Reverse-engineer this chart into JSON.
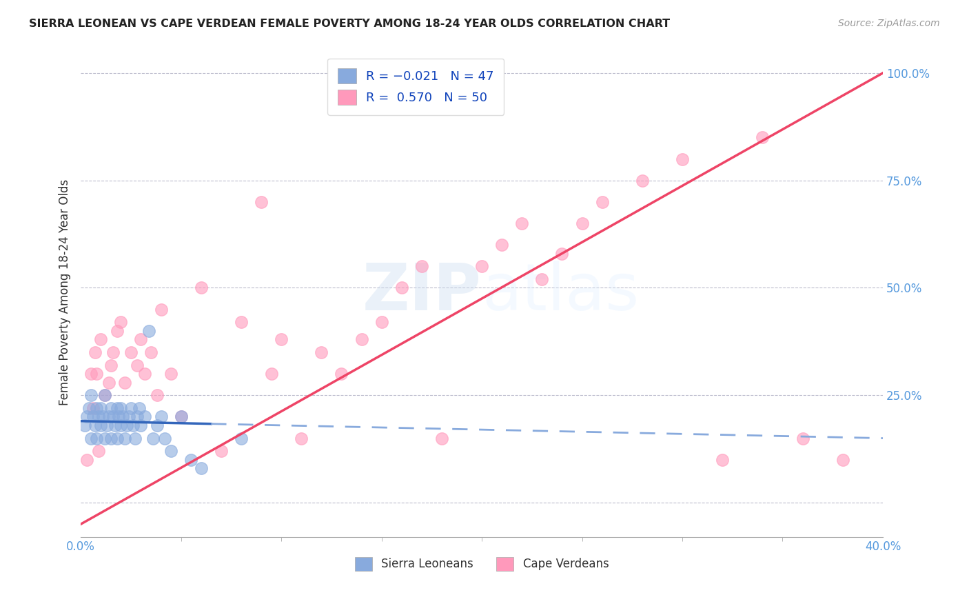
{
  "title": "SIERRA LEONEAN VS CAPE VERDEAN FEMALE POVERTY AMONG 18-24 YEAR OLDS CORRELATION CHART",
  "source": "Source: ZipAtlas.com",
  "ylabel": "Female Poverty Among 18-24 Year Olds",
  "xlim": [
    0.0,
    0.4
  ],
  "ylim": [
    -0.08,
    1.06
  ],
  "legend_R_blue": "R = -0.021",
  "legend_N_blue": "N = 47",
  "legend_R_pink": "R =  0.570",
  "legend_N_pink": "N = 50",
  "blue_color": "#88AADD",
  "pink_color": "#FF99BB",
  "trendline_blue_solid_color": "#3366BB",
  "trendline_blue_dash_color": "#88AADD",
  "trendline_pink_color": "#EE4466",
  "watermark": "ZIPatlas",
  "background_color": "#FFFFFF",
  "sierra_x": [
    0.002,
    0.003,
    0.004,
    0.005,
    0.005,
    0.006,
    0.007,
    0.008,
    0.008,
    0.009,
    0.01,
    0.01,
    0.011,
    0.012,
    0.012,
    0.013,
    0.014,
    0.015,
    0.015,
    0.016,
    0.017,
    0.018,
    0.018,
    0.019,
    0.02,
    0.02,
    0.021,
    0.022,
    0.023,
    0.024,
    0.025,
    0.026,
    0.027,
    0.028,
    0.029,
    0.03,
    0.032,
    0.034,
    0.036,
    0.038,
    0.04,
    0.042,
    0.045,
    0.05,
    0.055,
    0.06,
    0.08
  ],
  "sierra_y": [
    0.18,
    0.2,
    0.22,
    0.15,
    0.25,
    0.2,
    0.18,
    0.22,
    0.15,
    0.2,
    0.18,
    0.22,
    0.2,
    0.15,
    0.25,
    0.18,
    0.2,
    0.22,
    0.15,
    0.2,
    0.18,
    0.22,
    0.15,
    0.2,
    0.18,
    0.22,
    0.2,
    0.15,
    0.18,
    0.2,
    0.22,
    0.18,
    0.15,
    0.2,
    0.22,
    0.18,
    0.2,
    0.4,
    0.15,
    0.18,
    0.2,
    0.15,
    0.12,
    0.2,
    0.1,
    0.08,
    0.15
  ],
  "cape_x": [
    0.003,
    0.005,
    0.006,
    0.007,
    0.008,
    0.009,
    0.01,
    0.012,
    0.014,
    0.015,
    0.016,
    0.018,
    0.02,
    0.022,
    0.025,
    0.028,
    0.03,
    0.032,
    0.035,
    0.038,
    0.04,
    0.045,
    0.05,
    0.06,
    0.07,
    0.08,
    0.09,
    0.095,
    0.1,
    0.11,
    0.12,
    0.13,
    0.14,
    0.15,
    0.16,
    0.17,
    0.18,
    0.2,
    0.21,
    0.22,
    0.23,
    0.24,
    0.25,
    0.26,
    0.28,
    0.3,
    0.32,
    0.34,
    0.36,
    0.38
  ],
  "cape_y": [
    0.1,
    0.3,
    0.22,
    0.35,
    0.3,
    0.12,
    0.38,
    0.25,
    0.28,
    0.32,
    0.35,
    0.4,
    0.42,
    0.28,
    0.35,
    0.32,
    0.38,
    0.3,
    0.35,
    0.25,
    0.45,
    0.3,
    0.2,
    0.5,
    0.12,
    0.42,
    0.7,
    0.3,
    0.38,
    0.15,
    0.35,
    0.3,
    0.38,
    0.42,
    0.5,
    0.55,
    0.15,
    0.55,
    0.6,
    0.65,
    0.52,
    0.58,
    0.65,
    0.7,
    0.75,
    0.8,
    0.1,
    0.85,
    0.15,
    0.1
  ]
}
